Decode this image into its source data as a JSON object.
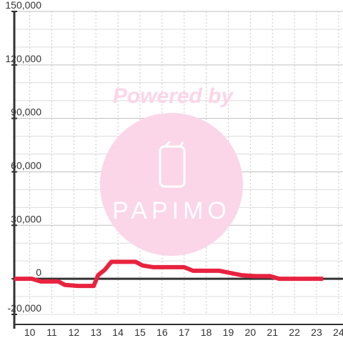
{
  "watermark": {
    "line1": "Powered by",
    "brand": "PAPIMO",
    "color": "#fbd5e8"
  },
  "chart_data": {
    "type": "line",
    "title": "",
    "xlabel": "",
    "ylabel": "",
    "xlim": [
      9.3,
      24.2
    ],
    "ylim": [
      -20000,
      150000
    ],
    "grid": true,
    "x_ticks": [
      "10",
      "11",
      "12",
      "13",
      "14",
      "15",
      "16",
      "17",
      "18",
      "19",
      "20",
      "21",
      "22",
      "23",
      "24"
    ],
    "y_ticks": [
      "150,000",
      "120,000",
      "90,000",
      "60,000",
      "30,000",
      "0",
      "-20,000"
    ],
    "y_tick_values": [
      150000,
      120000,
      90000,
      60000,
      30000,
      0,
      -20000
    ],
    "series": [
      {
        "color": "#e8233f",
        "x": [
          9.3,
          10.1,
          10.5,
          11.3,
          11.6,
          12.2,
          12.9,
          13.1,
          13.4,
          13.7,
          14.4,
          14.8,
          15.1,
          15.6,
          16.5,
          17.0,
          17.4,
          18.0,
          18.6,
          19.0,
          19.6,
          20.2,
          20.9,
          21.3,
          22.0,
          23.3
        ],
        "y": [
          0,
          0,
          -1500,
          -1500,
          -3500,
          -4000,
          -4000,
          2000,
          5000,
          9500,
          9500,
          9500,
          7500,
          6500,
          6500,
          6500,
          4500,
          4500,
          4500,
          3500,
          2000,
          1500,
          1500,
          0,
          0,
          0
        ]
      }
    ]
  }
}
